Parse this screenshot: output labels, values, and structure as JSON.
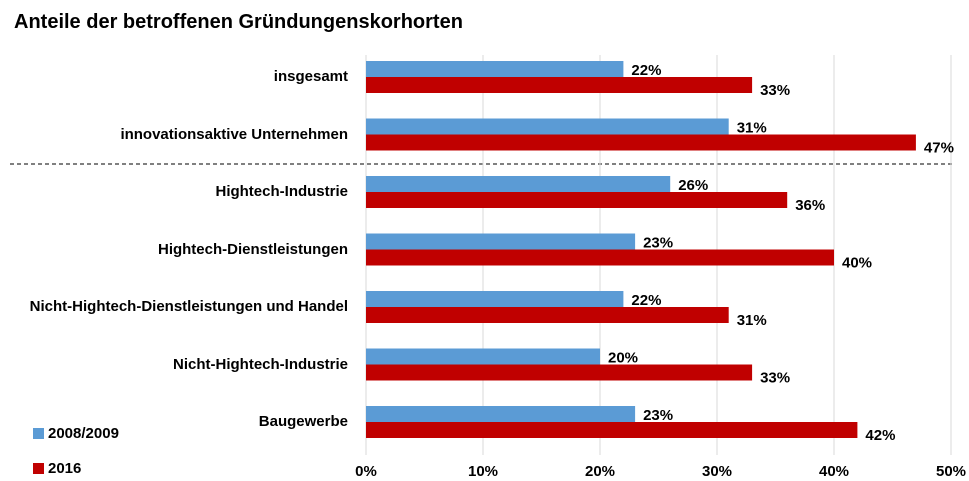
{
  "chart_data": {
    "type": "hbar",
    "title": "Anteile der betroffenen Gründungenskorhorten",
    "categories": [
      "insgesamt",
      "innovationsaktive Unternehmen",
      "Hightech-Industrie",
      "Hightech-Dienstleistungen",
      "Nicht-Hightech-Dienstleistungen und Handel",
      "Nicht-Hightech-Industrie",
      "Baugewerbe"
    ],
    "series": [
      {
        "name": "2008/2009",
        "color": "#5b9bd5",
        "values": [
          22,
          31,
          26,
          23,
          22,
          20,
          23
        ],
        "value_labels": [
          "22%",
          "31%",
          "26%",
          "23%",
          "22%",
          "20%",
          "23%"
        ]
      },
      {
        "name": "2016",
        "color": "#c00000",
        "values": [
          33,
          47,
          36,
          40,
          31,
          33,
          42
        ],
        "value_labels": [
          "33%",
          "47%",
          "36%",
          "40%",
          "31%",
          "33%",
          "42%"
        ]
      }
    ],
    "xlim": [
      0,
      50
    ],
    "xticks": [
      {
        "value": 0,
        "label": "0%"
      },
      {
        "value": 10,
        "label": "10%"
      },
      {
        "value": 20,
        "label": "20%"
      },
      {
        "value": 30,
        "label": "30%"
      },
      {
        "value": 40,
        "label": "40%"
      },
      {
        "value": 50,
        "label": "50%"
      }
    ],
    "grid": true
  }
}
